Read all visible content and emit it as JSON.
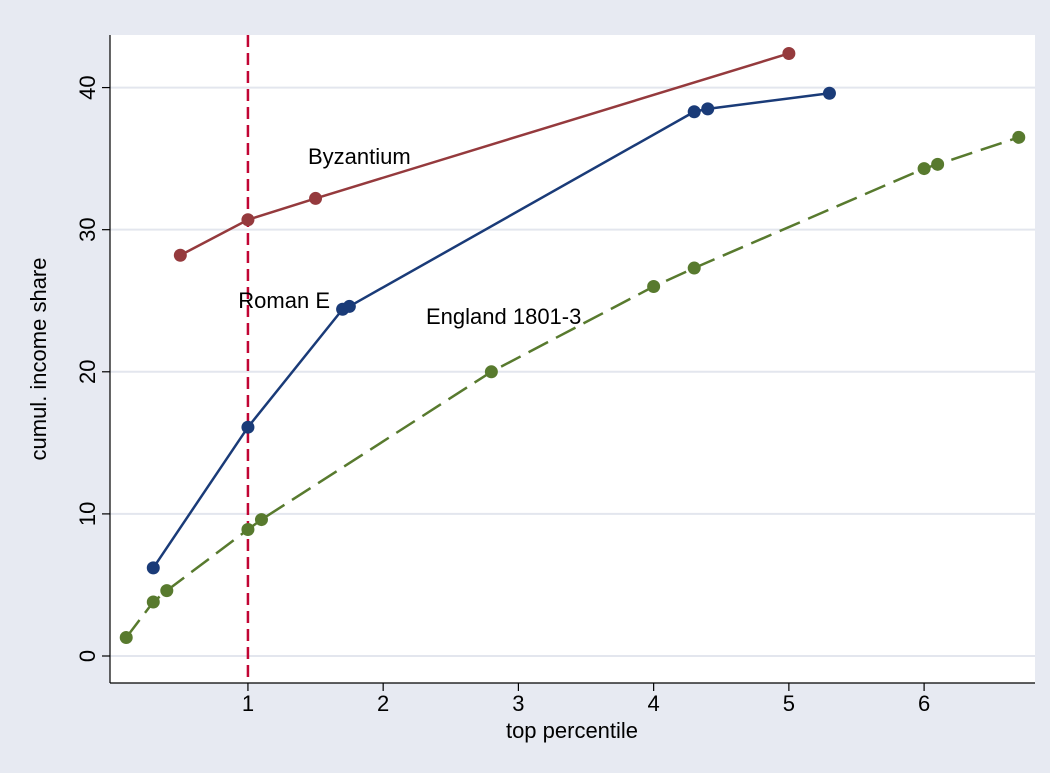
{
  "chart_data": {
    "type": "line",
    "x_label": "top percentile",
    "y_label": "cumul. income share",
    "xlim": [
      -0.02,
      6.82
    ],
    "ylim": [
      -1.9,
      43.7
    ],
    "xticks": [
      1,
      2,
      3,
      4,
      5,
      6
    ],
    "yticks": [
      0,
      10,
      20,
      30,
      40
    ],
    "grid": true,
    "xline": 1,
    "xline_color": "#c10534",
    "series": [
      {
        "name": "Byzantium",
        "color": "#953a3d",
        "dash": "solid",
        "x": [
          0.5,
          1,
          1.5,
          5
        ],
        "values": [
          28.2,
          30.7,
          32.2,
          42.4
        ]
      },
      {
        "name": "Roman E",
        "color": "#1a3b78",
        "dash": "solid",
        "x": [
          0.3,
          1,
          1.7,
          1.75,
          4.3,
          4.4,
          5.3
        ],
        "values": [
          6.2,
          16.1,
          24.4,
          24.6,
          38.3,
          38.5,
          39.6
        ]
      },
      {
        "name": "England 1801-3",
        "color": "#587a2e",
        "dash": "long",
        "x": [
          0.1,
          0.3,
          0.4,
          1,
          1.1,
          2.8,
          4,
          4.3,
          6,
          6.1,
          6.7
        ],
        "values": [
          1.3,
          3.8,
          4.6,
          8.9,
          9.6,
          20.0,
          26.0,
          27.3,
          34.3,
          34.6,
          36.5
        ]
      }
    ]
  }
}
